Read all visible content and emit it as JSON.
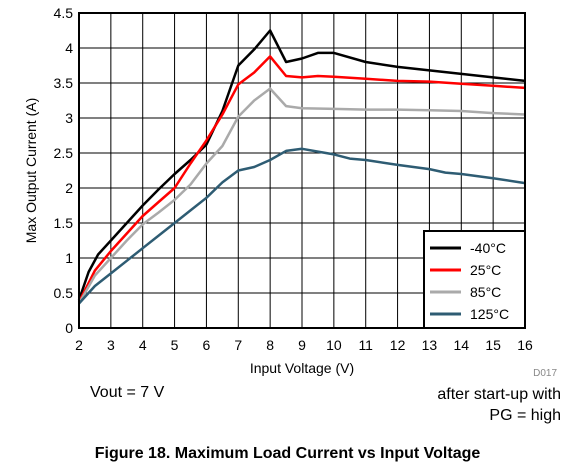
{
  "chart_data": {
    "type": "line",
    "title": "",
    "xlabel": "Input Voltage (V)",
    "ylabel": "Max Output Current (A)",
    "xlim": [
      2,
      16
    ],
    "ylim": [
      0,
      4.5
    ],
    "x_ticks": [
      "2",
      "3",
      "4",
      "5",
      "6",
      "7",
      "8",
      "9",
      "10",
      "11",
      "12",
      "13",
      "14",
      "15",
      "16"
    ],
    "y_ticks": [
      "0",
      "0.5",
      "1",
      "1.5",
      "2",
      "2.5",
      "3",
      "3.5",
      "4",
      "4.5"
    ],
    "grid": true,
    "legend_position": "bottom-right",
    "plot_id": "D017",
    "series": [
      {
        "name": "-40°C",
        "color": "#000000",
        "points": [
          [
            2,
            0.4
          ],
          [
            2.3,
            0.8
          ],
          [
            2.6,
            1.05
          ],
          [
            3,
            1.25
          ],
          [
            3.5,
            1.5
          ],
          [
            4,
            1.75
          ],
          [
            4.5,
            1.98
          ],
          [
            5,
            2.2
          ],
          [
            5.5,
            2.4
          ],
          [
            6,
            2.62
          ],
          [
            6.5,
            3.1
          ],
          [
            7,
            3.75
          ],
          [
            7.5,
            3.98
          ],
          [
            8,
            4.25
          ],
          [
            8.5,
            3.8
          ],
          [
            9,
            3.85
          ],
          [
            9.5,
            3.93
          ],
          [
            10,
            3.93
          ],
          [
            11,
            3.8
          ],
          [
            12,
            3.73
          ],
          [
            13,
            3.68
          ],
          [
            14,
            3.63
          ],
          [
            15,
            3.58
          ],
          [
            16,
            3.53
          ]
        ]
      },
      {
        "name": "25°C",
        "color": "#ff0000",
        "points": [
          [
            2,
            0.37
          ],
          [
            2.5,
            0.82
          ],
          [
            3,
            1.1
          ],
          [
            3.5,
            1.35
          ],
          [
            4,
            1.6
          ],
          [
            4.5,
            1.8
          ],
          [
            5,
            2.0
          ],
          [
            5.5,
            2.35
          ],
          [
            6,
            2.68
          ],
          [
            6.5,
            3.05
          ],
          [
            7,
            3.48
          ],
          [
            7.5,
            3.65
          ],
          [
            8,
            3.88
          ],
          [
            8.5,
            3.6
          ],
          [
            9,
            3.58
          ],
          [
            9.5,
            3.6
          ],
          [
            10,
            3.59
          ],
          [
            11,
            3.56
          ],
          [
            12,
            3.53
          ],
          [
            13,
            3.52
          ],
          [
            14,
            3.49
          ],
          [
            15,
            3.46
          ],
          [
            16,
            3.43
          ]
        ]
      },
      {
        "name": "85°C",
        "color": "#aaaaaa",
        "points": [
          [
            2,
            0.35
          ],
          [
            2.5,
            0.75
          ],
          [
            3,
            1.0
          ],
          [
            3.5,
            1.25
          ],
          [
            4,
            1.48
          ],
          [
            4.5,
            1.65
          ],
          [
            5,
            1.83
          ],
          [
            5.5,
            2.05
          ],
          [
            6,
            2.35
          ],
          [
            6.5,
            2.6
          ],
          [
            7,
            3.02
          ],
          [
            7.5,
            3.25
          ],
          [
            8,
            3.42
          ],
          [
            8.5,
            3.17
          ],
          [
            9,
            3.14
          ],
          [
            10,
            3.13
          ],
          [
            11,
            3.12
          ],
          [
            12,
            3.12
          ],
          [
            13,
            3.11
          ],
          [
            14,
            3.1
          ],
          [
            15,
            3.07
          ],
          [
            16,
            3.05
          ]
        ]
      },
      {
        "name": "125°C",
        "color": "#2e5c73",
        "points": [
          [
            2,
            0.35
          ],
          [
            2.5,
            0.6
          ],
          [
            3,
            0.78
          ],
          [
            3.5,
            0.96
          ],
          [
            4,
            1.14
          ],
          [
            4.5,
            1.32
          ],
          [
            5,
            1.5
          ],
          [
            5.5,
            1.68
          ],
          [
            6,
            1.86
          ],
          [
            6.5,
            2.08
          ],
          [
            7,
            2.25
          ],
          [
            7.5,
            2.3
          ],
          [
            8,
            2.4
          ],
          [
            8.5,
            2.53
          ],
          [
            9,
            2.56
          ],
          [
            9.5,
            2.52
          ],
          [
            10,
            2.48
          ],
          [
            10.5,
            2.42
          ],
          [
            11,
            2.4
          ],
          [
            12,
            2.33
          ],
          [
            13,
            2.27
          ],
          [
            13.5,
            2.22
          ],
          [
            14,
            2.2
          ],
          [
            15,
            2.14
          ],
          [
            16,
            2.07
          ]
        ]
      }
    ]
  },
  "notes": {
    "left": "Vout = 7 V",
    "right_line1": "after start-up with",
    "right_line2": "PG = high"
  },
  "caption": "Figure 18. Maximum Load Current vs Input Voltage"
}
